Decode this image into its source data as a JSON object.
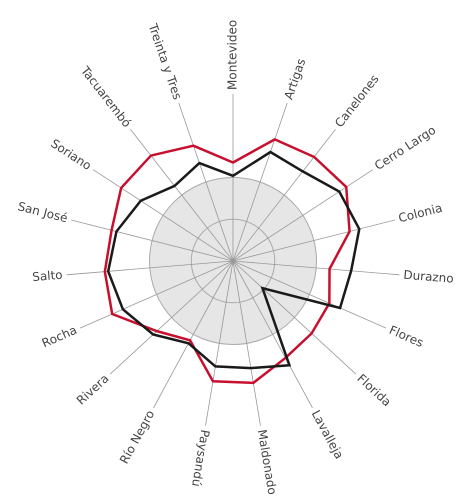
{
  "chart_data": {
    "type": "radar",
    "categories": [
      "Montevideo",
      "Artigas",
      "Canelones",
      "Cerro Largo",
      "Colonia",
      "Durazno",
      "Flores",
      "Florida",
      "Lavalleja",
      "Maldonado",
      "Paysandú",
      "Río Negro",
      "Rivera",
      "Rocha",
      "Salto",
      "San José",
      "Soriano",
      "Tacuarembó",
      "Treinta y Tres"
    ],
    "series": [
      {
        "color": "#c8102e",
        "values": [
          59,
          77,
          79,
          81,
          72,
          58,
          63,
          64,
          66,
          74,
          73,
          54,
          62,
          79,
          77,
          75,
          80,
          80,
          73
        ]
      },
      {
        "color": "#1a1a1a",
        "values": [
          51,
          69,
          68,
          76,
          78,
          71,
          70,
          24,
          71,
          65,
          64,
          56,
          65,
          72,
          75,
          72,
          66,
          57,
          62
        ]
      }
    ],
    "rlim": [
      0,
      100
    ],
    "rticks": [
      25,
      50
    ]
  }
}
